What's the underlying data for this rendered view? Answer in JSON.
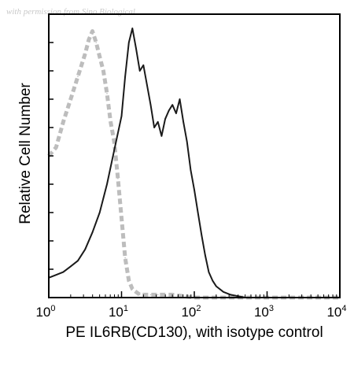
{
  "watermark": "with permission from Sino Biological",
  "chart_data": {
    "type": "area",
    "title": "",
    "xlabel": "PE IL6RB(CD130), with isotype control",
    "ylabel": "Relative Cell Number",
    "x_scale": "log",
    "xlim": [
      1,
      10000
    ],
    "ylim": [
      0,
      100
    ],
    "x_ticks": [
      {
        "base": "10",
        "exp": "0",
        "value": 1
      },
      {
        "base": "10",
        "exp": "1",
        "value": 10
      },
      {
        "base": "10",
        "exp": "2",
        "value": 100
      },
      {
        "base": "10",
        "exp": "3",
        "value": 1000
      },
      {
        "base": "10",
        "exp": "4",
        "value": 10000
      }
    ],
    "y_ticks_shown": false,
    "grid": false,
    "legend": "none",
    "series": [
      {
        "style": "dashed",
        "color": "#bdbdbd",
        "x": [
          1,
          1.26,
          1.58,
          2,
          2.51,
          3.16,
          3.55,
          3.98,
          4.47,
          5.01,
          5.62,
          6.31,
          7.08,
          7.94,
          8.91,
          10,
          11.2,
          12.6,
          14.1,
          15.8,
          17.8,
          20,
          25.1,
          31.6,
          50,
          100,
          1000,
          10000
        ],
        "y": [
          50,
          53,
          62,
          70,
          78,
          86,
          91,
          94,
          90,
          85,
          80,
          72,
          62,
          55,
          42,
          28,
          14,
          6,
          3,
          2,
          1,
          1,
          1,
          1,
          1,
          0,
          0,
          0
        ]
      },
      {
        "style": "solid",
        "color": "#1a1a1a",
        "x": [
          1,
          1.26,
          1.58,
          2,
          2.51,
          3.16,
          3.98,
          5.01,
          6.31,
          7.94,
          10,
          11.2,
          12.6,
          14.1,
          15.8,
          17.8,
          20,
          22.4,
          25.1,
          28.2,
          31.6,
          35.5,
          39.8,
          44.7,
          50.1,
          56.2,
          63.1,
          70.8,
          79.4,
          89.1,
          100,
          112,
          126,
          141,
          158,
          178,
          200,
          251,
          316,
          501,
          1000,
          10000
        ],
        "y": [
          7,
          8,
          9,
          11,
          13,
          17,
          23,
          30,
          40,
          52,
          64,
          78,
          90,
          95,
          88,
          80,
          82,
          75,
          68,
          60,
          62,
          57,
          63,
          66,
          68,
          65,
          70,
          62,
          55,
          45,
          38,
          30,
          22,
          15,
          9,
          6,
          4,
          2,
          1,
          0,
          0,
          0
        ]
      }
    ]
  }
}
